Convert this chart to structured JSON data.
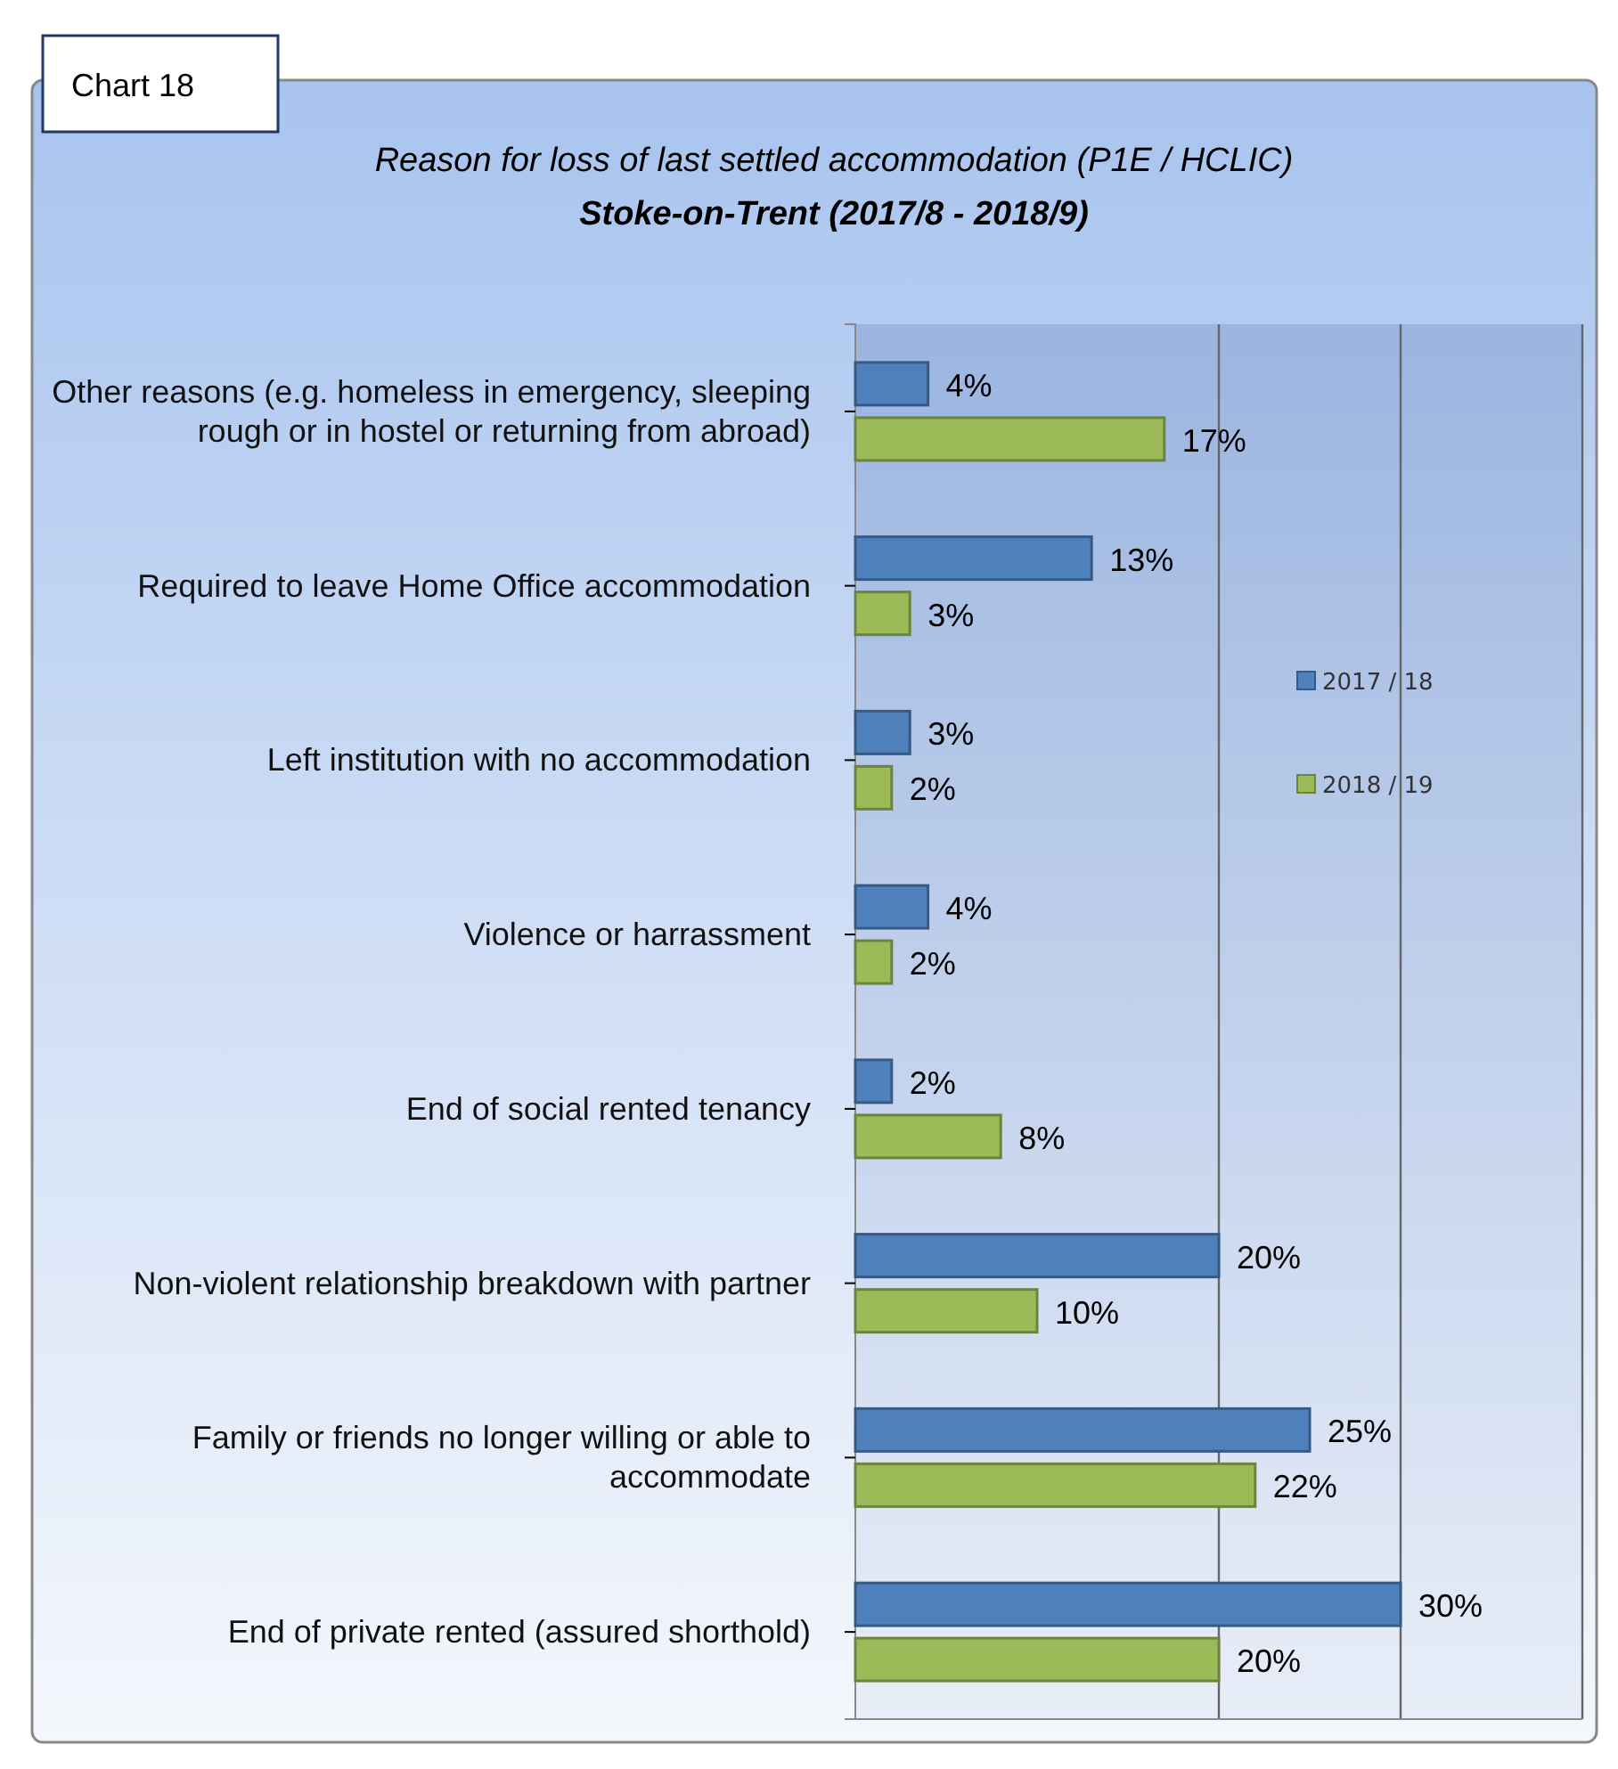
{
  "chart_data": {
    "type": "bar",
    "orientation": "horizontal",
    "title": "Reason for loss of last settled accommodation (P1E / HCLIC)",
    "subtitle": "Stoke-on-Trent (2017/8 - 2018/9)",
    "annotations": [
      "Chart 18"
    ],
    "categories": [
      "Other reasons (e.g. homeless in emergency, sleeping rough or in hostel or returning from abroad)",
      "Required to leave Home Office accommodation",
      "Left institution with no accommodation",
      "Violence or harrassment",
      "End of social rented tenancy",
      "Non-violent relationship breakdown with partner",
      "Family or friends no longer willing or able to accommodate",
      "End of private rented (assured shorthold)"
    ],
    "series": [
      {
        "name": "2017 / 18",
        "color": "#4f81bd",
        "values": [
          4,
          13,
          3,
          4,
          2,
          20,
          25,
          30
        ],
        "value_labels": [
          "4%",
          "13%",
          "3%",
          "4%",
          "2%",
          "20%",
          "25%",
          "30%"
        ]
      },
      {
        "name": "2018 / 19",
        "color": "#9bbb59",
        "values": [
          17,
          3,
          2,
          2,
          8,
          10,
          22,
          20
        ],
        "value_labels": [
          "17%",
          "3%",
          "2%",
          "2%",
          "8%",
          "10%",
          "22%",
          "20%"
        ]
      }
    ],
    "xlim": [
      0,
      40
    ],
    "ref_lines": [
      {
        "axis": "x",
        "value": 20,
        "color": "#666666"
      },
      {
        "axis": "x",
        "value": 30,
        "color": "#666666"
      },
      {
        "axis": "x",
        "value": 40,
        "color": "#666666"
      }
    ],
    "tick_labels": "y",
    "legend": "right"
  }
}
